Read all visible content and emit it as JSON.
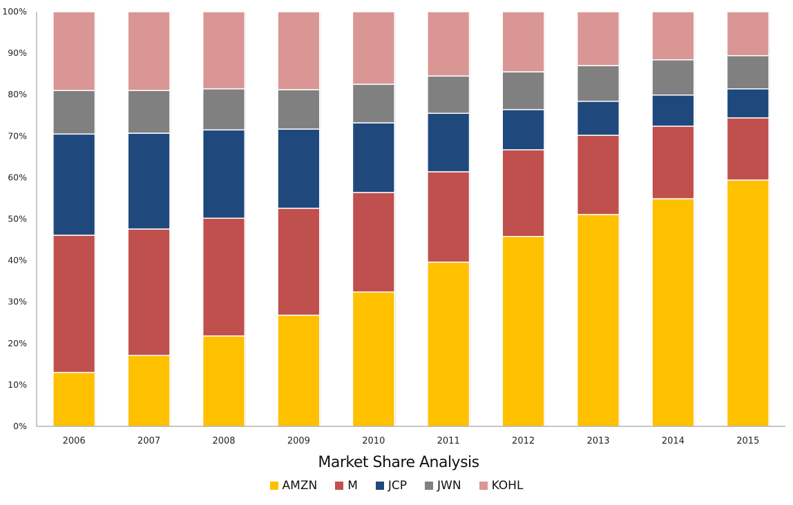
{
  "chart_data": {
    "type": "bar",
    "stacked": true,
    "normalized": true,
    "title": "Market Share Analysis",
    "xlabel": "",
    "ylabel": "",
    "ylim": [
      0,
      100
    ],
    "yticks": [
      "0%",
      "10%",
      "20%",
      "30%",
      "40%",
      "50%",
      "60%",
      "70%",
      "80%",
      "90%",
      "100%"
    ],
    "grid": false,
    "legend_position": "bottom",
    "categories": [
      "2006",
      "2007",
      "2008",
      "2009",
      "2010",
      "2011",
      "2012",
      "2013",
      "2014",
      "2015"
    ],
    "series": [
      {
        "name": "AMZN",
        "color": "#FFC000",
        "values": [
          13.0,
          17.1,
          21.8,
          26.8,
          32.4,
          39.6,
          45.8,
          51.1,
          54.9,
          59.4
        ]
      },
      {
        "name": "M",
        "color": "#C0504D",
        "values": [
          33.1,
          30.5,
          28.4,
          25.8,
          24.0,
          21.8,
          20.9,
          19.1,
          17.5,
          15.0
        ]
      },
      {
        "name": "JCP",
        "color": "#1F497D",
        "values": [
          24.4,
          23.1,
          21.3,
          19.1,
          16.8,
          14.1,
          9.7,
          8.2,
          7.5,
          7.0
        ]
      },
      {
        "name": "JWN",
        "color": "#808080",
        "values": [
          10.5,
          10.3,
          9.9,
          9.5,
          9.3,
          9.0,
          9.1,
          8.6,
          8.5,
          8.0
        ]
      },
      {
        "name": "KOHL",
        "color": "#D99694",
        "values": [
          19.0,
          19.0,
          18.6,
          18.8,
          17.5,
          15.5,
          14.5,
          13.0,
          11.6,
          10.6
        ]
      }
    ]
  }
}
